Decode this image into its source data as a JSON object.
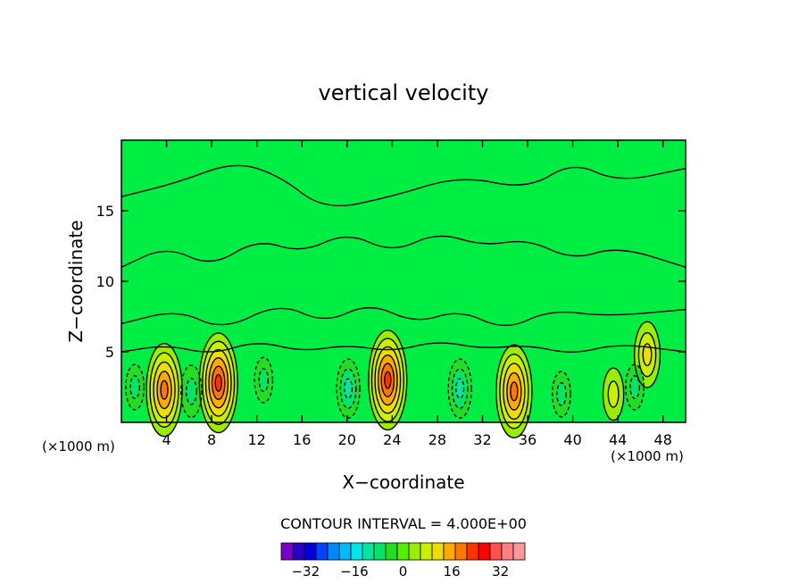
{
  "chart_data": {
    "type": "heatmap",
    "title": "vertical velocity",
    "xlabel": "X−coordinate",
    "ylabel": "Z−coordinate",
    "x_unit_left": "(×1000 m)",
    "x_unit_right": "(×1000 m)",
    "xlim": [
      0,
      50
    ],
    "ylim": [
      0,
      20
    ],
    "x_ticks": [
      4,
      8,
      12,
      16,
      20,
      24,
      28,
      32,
      36,
      40,
      44,
      48
    ],
    "y_ticks": [
      5,
      10,
      15
    ],
    "contour_interval_label": "CONTOUR INTERVAL = 4.000E+00",
    "background_color": "#00ee44",
    "colorbar": {
      "colors": [
        "#7a00c8",
        "#2a00c8",
        "#0000dc",
        "#0044ff",
        "#0088ff",
        "#00bbff",
        "#00e6e6",
        "#00e6a0",
        "#00e664",
        "#22dd22",
        "#55ee00",
        "#99ee00",
        "#ccee00",
        "#eedd00",
        "#ffaa00",
        "#ff7700",
        "#ff3300",
        "#ff0000",
        "#ff5050",
        "#ff8080",
        "#ff9999"
      ],
      "tick_labels": [
        "−32",
        "−16",
        "0",
        "16",
        "32"
      ],
      "tick_values": [
        -32,
        -16,
        0,
        16,
        32
      ],
      "range": [
        -40,
        40
      ]
    },
    "features": [
      {
        "x": 3.8,
        "z": 2.3,
        "w": 20,
        "kind": "updraft"
      },
      {
        "x": 8.6,
        "z": 2.8,
        "w": 22,
        "kind": "updraft"
      },
      {
        "x": 23.6,
        "z": 3.0,
        "w": 22,
        "kind": "updraft"
      },
      {
        "x": 34.8,
        "z": 2.2,
        "w": 20,
        "kind": "updraft"
      },
      {
        "x": 43.6,
        "z": 2.0,
        "w": 8,
        "kind": "updraft"
      },
      {
        "x": 46.6,
        "z": 4.8,
        "w": 12,
        "kind": "updraft"
      },
      {
        "x": 6.2,
        "z": 2.2,
        "w": -8,
        "kind": "downdraft"
      },
      {
        "x": 1.2,
        "z": 2.5,
        "w": -6,
        "kind": "downdraft"
      },
      {
        "x": 12.6,
        "z": 3.0,
        "w": -6,
        "kind": "downdraft"
      },
      {
        "x": 20.1,
        "z": 2.4,
        "w": -10,
        "kind": "downdraft"
      },
      {
        "x": 30.0,
        "z": 2.4,
        "w": -10,
        "kind": "downdraft"
      },
      {
        "x": 39.0,
        "z": 2.0,
        "w": -6,
        "kind": "downdraft"
      },
      {
        "x": 45.5,
        "z": 2.5,
        "w": -6,
        "kind": "downdraft"
      }
    ]
  }
}
